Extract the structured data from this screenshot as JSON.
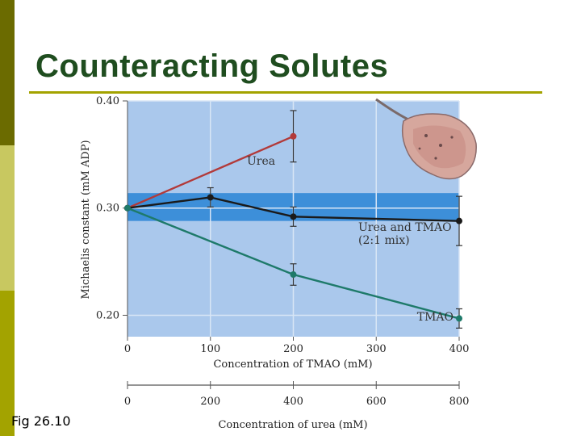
{
  "slide": {
    "title": "Counteracting Solutes",
    "caption": "Fig 26.10",
    "accent_colors": {
      "strip_dark": "#6b6b00",
      "strip_light": "#c8c860",
      "strip_mid": "#a3a300",
      "title": "#1f4d1f"
    }
  },
  "chart_data": {
    "type": "line",
    "title": "",
    "xlabel": "Concentration of TMAO (mM)",
    "x2label": "Concentration of urea (mM)",
    "ylabel": "Michaelis constant (mM ADP)",
    "xlim": [
      0,
      400
    ],
    "x2lim": [
      0,
      800
    ],
    "ylim": [
      0.18,
      0.4
    ],
    "x_ticks": [
      "0",
      "100",
      "200",
      "300",
      "400"
    ],
    "x2_ticks": [
      "0",
      "200",
      "400",
      "600",
      "800"
    ],
    "y_ticks": [
      "0.20",
      "0.30",
      "0.40"
    ],
    "band": {
      "y_low": 0.288,
      "y_high": 0.314,
      "color": "#3d8fd9"
    },
    "grid": true,
    "series": [
      {
        "name": "Urea",
        "color": "#b23a3a",
        "x": [
          0,
          200
        ],
        "y": [
          0.3,
          0.367
        ],
        "err": [
          0,
          0.024
        ]
      },
      {
        "name": "Urea and TMAO",
        "sub": "(2:1 mix)",
        "color": "#1a1a1a",
        "x": [
          0,
          100,
          200,
          400
        ],
        "y": [
          0.3,
          0.31,
          0.292,
          0.288
        ],
        "err": [
          0,
          0.009,
          0.009,
          0.023
        ]
      },
      {
        "name": "TMAO",
        "color": "#1e7a6a",
        "x": [
          0,
          200,
          400
        ],
        "y": [
          0.3,
          0.238,
          0.197
        ],
        "err": [
          0,
          0.01,
          0.009
        ]
      }
    ],
    "illustration": "stingray-icon"
  }
}
